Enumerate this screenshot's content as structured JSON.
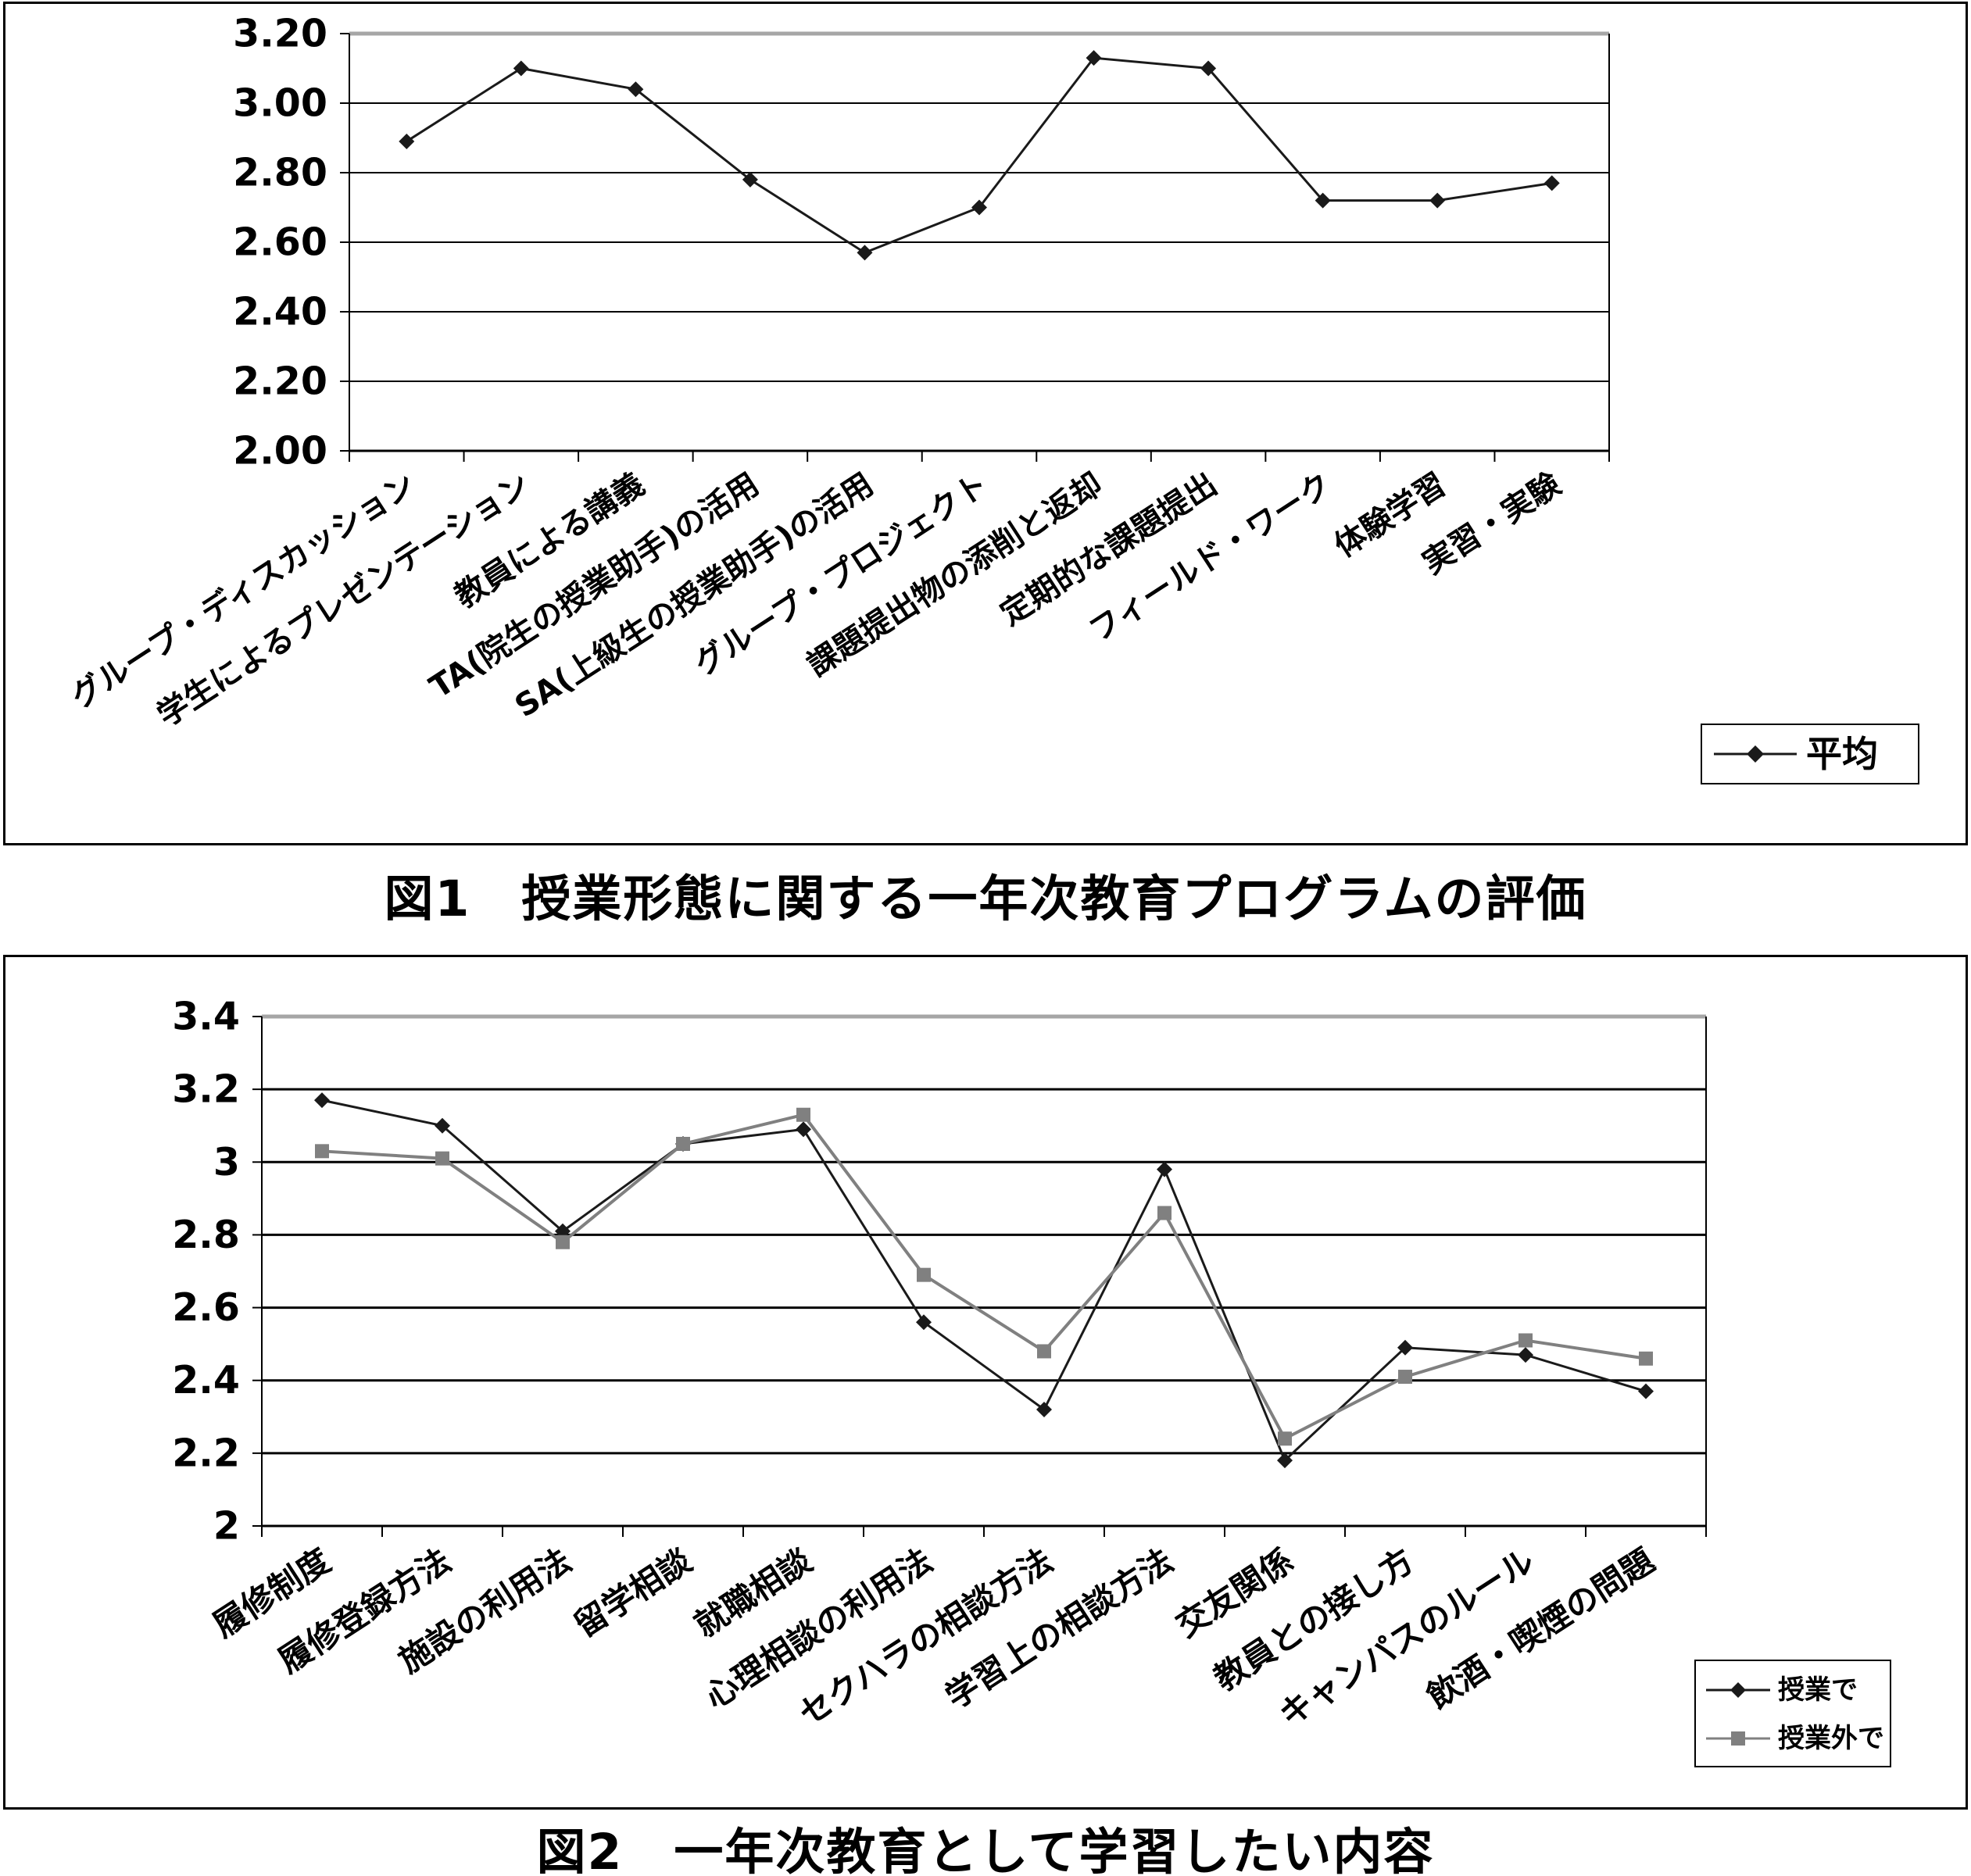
{
  "page": {
    "background": "#ffffff"
  },
  "figure1": {
    "caption": "図1　授業形態に関する一年次教育プログラムの評価"
  },
  "figure2": {
    "caption": "図2　一年次教育として学習したい内容"
  },
  "chart_data": [
    {
      "type": "line",
      "title": "",
      "categories": [
        "グループ・ディスカッション",
        "学生によるプレゼンテーション",
        "教員による講義",
        "TA(院生の授業助手)の活用",
        "SA(上級生の授業助手)の活用",
        "グループ・プロジェクト",
        "課題提出物の添削と返却",
        "定期的な課題提出",
        "フィールド・ワーク",
        "体験学習",
        "実習・実験"
      ],
      "series": [
        {
          "name": "平均",
          "marker": "diamond",
          "color": "#1a1a1a",
          "values": [
            2.89,
            3.1,
            3.04,
            2.78,
            2.57,
            2.7,
            3.13,
            3.1,
            2.72,
            2.72,
            2.77
          ]
        }
      ],
      "ylim": [
        2.0,
        3.2
      ],
      "ytick_labels": [
        "3.20",
        "3.00",
        "2.80",
        "2.60",
        "2.40",
        "2.20",
        "2.00"
      ],
      "xlabel": "",
      "ylabel": "",
      "grid": true,
      "legend_position": "bottom-right",
      "gridline_color": "#000000",
      "top_border_color": "#a6a6a6"
    },
    {
      "type": "line",
      "title": "",
      "categories": [
        "履修制度",
        "履修登録方法",
        "施設の利用法",
        "留学相談",
        "就職相談",
        "心理相談の利用法",
        "セクハラの相談方法",
        "学習上の相談方法",
        "交友関係",
        "教員との接し方",
        "キャンパスのルール",
        "飲酒・喫煙の問題"
      ],
      "series": [
        {
          "name": "授業で",
          "marker": "diamond",
          "color": "#1a1a1a",
          "values": [
            3.17,
            3.1,
            2.81,
            3.05,
            3.09,
            2.56,
            2.32,
            2.98,
            2.18,
            2.49,
            2.47,
            2.37
          ]
        },
        {
          "name": "授業外で",
          "marker": "square",
          "color": "#808080",
          "values": [
            3.03,
            3.01,
            2.78,
            3.05,
            3.13,
            2.69,
            2.48,
            2.86,
            2.24,
            2.41,
            2.51,
            2.46
          ]
        }
      ],
      "ylim": [
        2,
        3.4
      ],
      "ytick_labels": [
        "3.4",
        "3.2",
        "3",
        "2.8",
        "2.6",
        "2.4",
        "2.2",
        "2"
      ],
      "xlabel": "",
      "ylabel": "",
      "grid": true,
      "legend_position": "right-below-plot",
      "gridline_color": "#000000",
      "top_border_color": "#a6a6a6"
    }
  ]
}
